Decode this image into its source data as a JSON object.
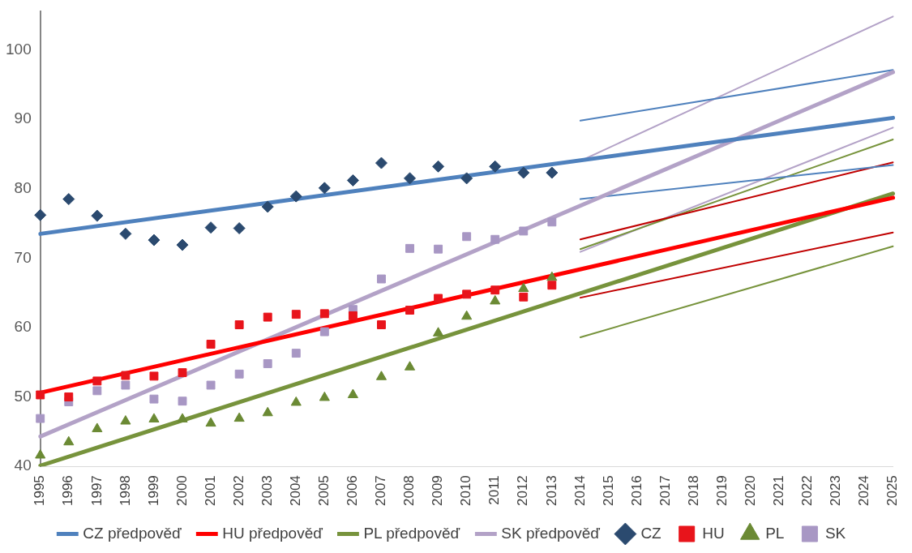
{
  "chart_data": {
    "type": "line",
    "categories": [
      "1995",
      "1996",
      "1997",
      "1998",
      "1999",
      "2000",
      "2001",
      "2002",
      "2003",
      "2004",
      "2005",
      "2006",
      "2007",
      "2008",
      "2009",
      "2010",
      "2011",
      "2012",
      "2013",
      "2014",
      "2015",
      "2016",
      "2017",
      "2018",
      "2019",
      "2020",
      "2021",
      "2022",
      "2023",
      "2024",
      "2025"
    ],
    "ylim": [
      40,
      105.5
    ],
    "yticks": [
      40,
      50,
      60,
      70,
      80,
      90,
      100
    ],
    "grid": false,
    "legend": "bottom",
    "series": [
      {
        "name": "CZ předpověď",
        "color": "#4f81bd",
        "values": [
          73.5,
          null,
          null,
          null,
          null,
          null,
          null,
          null,
          null,
          null,
          null,
          null,
          null,
          null,
          null,
          null,
          null,
          null,
          null,
          null,
          null,
          null,
          null,
          null,
          null,
          null,
          null,
          null,
          null,
          null,
          90.2
        ]
      },
      {
        "name": "HU předpověď",
        "color": "#ff0000",
        "values": [
          50.6,
          null,
          null,
          null,
          null,
          null,
          null,
          null,
          null,
          null,
          null,
          null,
          null,
          null,
          null,
          null,
          null,
          null,
          null,
          null,
          null,
          null,
          null,
          null,
          null,
          null,
          null,
          null,
          null,
          null,
          78.7
        ]
      },
      {
        "name": "PL předpověď",
        "color": "#77933c",
        "values": [
          40.1,
          null,
          null,
          null,
          null,
          null,
          null,
          null,
          null,
          null,
          null,
          null,
          null,
          null,
          null,
          null,
          null,
          null,
          null,
          null,
          null,
          null,
          null,
          null,
          null,
          null,
          null,
          null,
          null,
          null,
          79.3
        ]
      },
      {
        "name": "SK předpověď",
        "color": "#b3a2c7",
        "values": [
          44.3,
          null,
          null,
          null,
          null,
          null,
          null,
          null,
          null,
          null,
          null,
          null,
          null,
          null,
          null,
          null,
          null,
          null,
          null,
          null,
          null,
          null,
          null,
          null,
          null,
          null,
          null,
          null,
          null,
          null,
          96.8
        ]
      },
      {
        "name": "CZ",
        "type": "scatter",
        "marker": "diamond",
        "color": "#2b4a6f",
        "values": [
          76.2,
          78.5,
          76.1,
          73.5,
          72.6,
          71.9,
          74.4,
          74.3,
          77.4,
          78.9,
          80.1,
          81.2,
          83.7,
          81.5,
          83.2,
          81.5,
          83.2,
          82.3,
          82.3,
          null,
          null,
          null,
          null,
          null,
          null,
          null,
          null,
          null,
          null,
          null,
          null
        ]
      },
      {
        "name": "HU",
        "type": "scatter",
        "marker": "square",
        "color": "#e8141b",
        "values": [
          50.3,
          50.0,
          52.3,
          53.1,
          53.0,
          53.5,
          57.6,
          60.4,
          61.5,
          61.9,
          62.0,
          61.7,
          60.4,
          62.5,
          64.2,
          64.8,
          65.4,
          64.4,
          66.1,
          null,
          null,
          null,
          null,
          null,
          null,
          null,
          null,
          null,
          null,
          null,
          null
        ]
      },
      {
        "name": "PL",
        "type": "scatter",
        "marker": "triangle",
        "color": "#6b8a34",
        "values": [
          41.6,
          43.5,
          45.4,
          46.5,
          46.8,
          46.8,
          46.2,
          46.9,
          47.7,
          49.2,
          49.9,
          50.3,
          52.9,
          54.3,
          59.2,
          61.6,
          63.8,
          65.6,
          67.2,
          null,
          null,
          null,
          null,
          null,
          null,
          null,
          null,
          null,
          null,
          null,
          null
        ]
      },
      {
        "name": "SK",
        "type": "scatter",
        "marker": "square",
        "color": "#a897c4",
        "values": [
          46.9,
          49.3,
          50.9,
          51.7,
          49.7,
          49.4,
          51.7,
          53.3,
          54.8,
          56.3,
          59.4,
          62.6,
          67.0,
          71.4,
          71.3,
          73.1,
          72.7,
          73.9,
          75.2,
          null,
          null,
          null,
          null,
          null,
          null,
          null,
          null,
          null,
          null,
          null,
          null
        ]
      },
      {
        "type": "line",
        "color": "#4f81bd",
        "values": [
          null,
          null,
          null,
          null,
          null,
          null,
          null,
          null,
          null,
          null,
          null,
          null,
          null,
          null,
          null,
          null,
          null,
          null,
          null,
          89.8,
          null,
          null,
          null,
          null,
          null,
          null,
          null,
          null,
          null,
          null,
          97.1
        ]
      },
      {
        "type": "line",
        "color": "#4f81bd",
        "values": [
          null,
          null,
          null,
          null,
          null,
          null,
          null,
          null,
          null,
          null,
          null,
          null,
          null,
          null,
          null,
          null,
          null,
          null,
          null,
          78.5,
          null,
          null,
          null,
          null,
          null,
          null,
          null,
          null,
          null,
          null,
          83.4
        ]
      },
      {
        "type": "line",
        "color": "#c00000",
        "values": [
          null,
          null,
          null,
          null,
          null,
          null,
          null,
          null,
          null,
          null,
          null,
          null,
          null,
          null,
          null,
          null,
          null,
          null,
          null,
          72.7,
          null,
          null,
          null,
          null,
          null,
          null,
          null,
          null,
          null,
          null,
          83.8
        ]
      },
      {
        "type": "line",
        "color": "#c00000",
        "values": [
          null,
          null,
          null,
          null,
          null,
          null,
          null,
          null,
          null,
          null,
          null,
          null,
          null,
          null,
          null,
          null,
          null,
          null,
          null,
          64.3,
          null,
          null,
          null,
          null,
          null,
          null,
          null,
          null,
          null,
          null,
          73.7
        ]
      },
      {
        "type": "line",
        "color": "#77933c",
        "values": [
          null,
          null,
          null,
          null,
          null,
          null,
          null,
          null,
          null,
          null,
          null,
          null,
          null,
          null,
          null,
          null,
          null,
          null,
          null,
          71.3,
          null,
          null,
          null,
          null,
          null,
          null,
          null,
          null,
          null,
          null,
          87.1
        ]
      },
      {
        "type": "line",
        "color": "#77933c",
        "values": [
          null,
          null,
          null,
          null,
          null,
          null,
          null,
          null,
          null,
          null,
          null,
          null,
          null,
          null,
          null,
          null,
          null,
          null,
          null,
          58.6,
          null,
          null,
          null,
          null,
          null,
          null,
          null,
          null,
          null,
          null,
          71.7
        ]
      },
      {
        "type": "line",
        "color": "#b3a2c7",
        "values": [
          null,
          null,
          null,
          null,
          null,
          null,
          null,
          null,
          null,
          null,
          null,
          null,
          null,
          null,
          null,
          null,
          null,
          null,
          null,
          84.0,
          null,
          null,
          null,
          null,
          null,
          null,
          null,
          null,
          null,
          null,
          104.8
        ]
      },
      {
        "type": "line",
        "color": "#b3a2c7",
        "values": [
          null,
          null,
          null,
          null,
          null,
          null,
          null,
          null,
          null,
          null,
          null,
          null,
          null,
          null,
          null,
          null,
          null,
          null,
          null,
          70.9,
          null,
          null,
          null,
          null,
          null,
          null,
          null,
          null,
          null,
          null,
          88.8
        ]
      }
    ]
  }
}
